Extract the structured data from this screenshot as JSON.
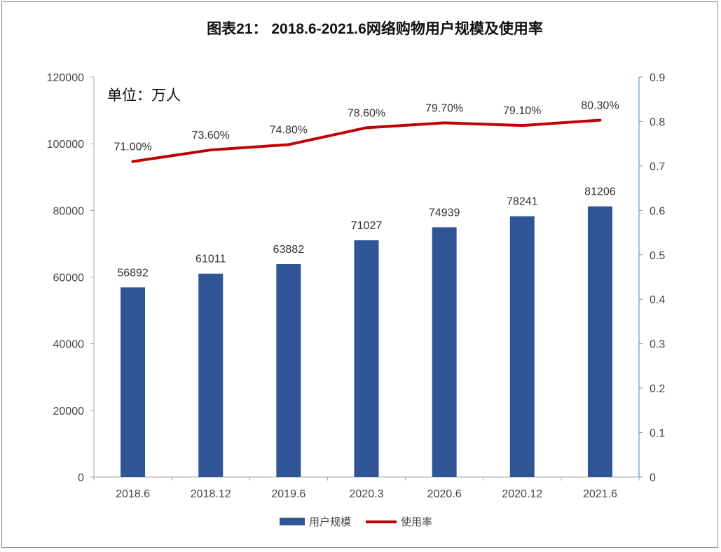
{
  "chart_data": {
    "type": "bar",
    "title": "图表21： 2018.6-2021.6网络购物用户规模及使用率",
    "unit_note": "单位：万人",
    "categories": [
      "2018.6",
      "2018.12",
      "2019.6",
      "2020.3",
      "2020.6",
      "2020.12",
      "2021.6"
    ],
    "series": [
      {
        "name": "用户规模",
        "type": "bar",
        "axis": "left",
        "color": "#2F5597",
        "values": [
          56892,
          61011,
          63882,
          71027,
          74939,
          78241,
          81206
        ],
        "labels": [
          "56892",
          "61011",
          "63882",
          "71027",
          "74939",
          "78241",
          "81206"
        ]
      },
      {
        "name": "使用率",
        "type": "line",
        "axis": "right",
        "color": "#C00000",
        "values": [
          0.71,
          0.736,
          0.748,
          0.786,
          0.797,
          0.791,
          0.803
        ],
        "labels": [
          "71.00%",
          "73.60%",
          "74.80%",
          "78.60%",
          "79.70%",
          "79.10%",
          "80.30%"
        ]
      }
    ],
    "y_left": {
      "range": [
        0,
        120000
      ],
      "ticks": [
        "0",
        "20000",
        "40000",
        "60000",
        "80000",
        "100000",
        "120000"
      ]
    },
    "y_right": {
      "range": [
        0,
        0.9
      ],
      "ticks": [
        "0",
        "0.1",
        "0.2",
        "0.3",
        "0.4",
        "0.5",
        "0.6",
        "0.7",
        "0.8",
        "0.9"
      ]
    },
    "legend_position": "bottom",
    "grid": false
  }
}
